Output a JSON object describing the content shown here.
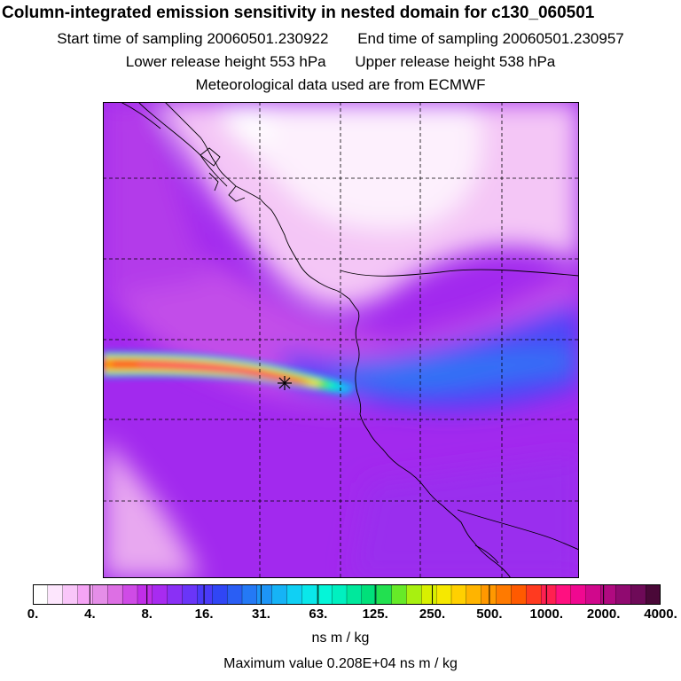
{
  "title": "Column-integrated emission sensitivity in nested domain for c130_060501",
  "subtitle": {
    "start": "Start time of sampling 20060501.230922",
    "end": "End time of sampling 20060501.230957",
    "lower": "Lower release height  553 hPa",
    "upper": "Upper release height  538 hPa",
    "met": "Meteorological data used are from ECMWF"
  },
  "chart_data": {
    "type": "heatmap",
    "title": "Column-integrated emission sensitivity in nested domain for c130_060501",
    "colorbar": {
      "label": "ns m / kg",
      "ticks": [
        "0.",
        "4.",
        "8.",
        "16.",
        "31.",
        "63.",
        "125.",
        "250.",
        "500.",
        "1000.",
        "2000.",
        "4000."
      ],
      "colors": [
        "#ffffff",
        "#fde6fd",
        "#f9c6f9",
        "#f5a4f5",
        "#e58ee8",
        "#dd6fe4",
        "#cf4be6",
        "#c02ee8",
        "#a82bf0",
        "#8a30f5",
        "#6a35f8",
        "#4a3af8",
        "#3046f5",
        "#2a5ef4",
        "#2479f5",
        "#1d95f6",
        "#16b3f6",
        "#10d0f4",
        "#0ae7ea",
        "#05f5d8",
        "#00f0c0",
        "#00e89c",
        "#00e07a",
        "#22e050",
        "#66ea28",
        "#a8f010",
        "#d8f000",
        "#f6e800",
        "#ffd000",
        "#ffb400",
        "#ff9800",
        "#ff7a00",
        "#ff5a00",
        "#ff3a20",
        "#ff2050",
        "#ff1080",
        "#f00890",
        "#d0088c",
        "#b00a80",
        "#900a70",
        "#6e0a58",
        "#4a0838"
      ]
    },
    "plume": {
      "description_values": "peak near release point",
      "max_value": 2080
    },
    "release_marker": "star"
  },
  "max_value_text": "Maximum value  0.208E+04 ns m / kg"
}
